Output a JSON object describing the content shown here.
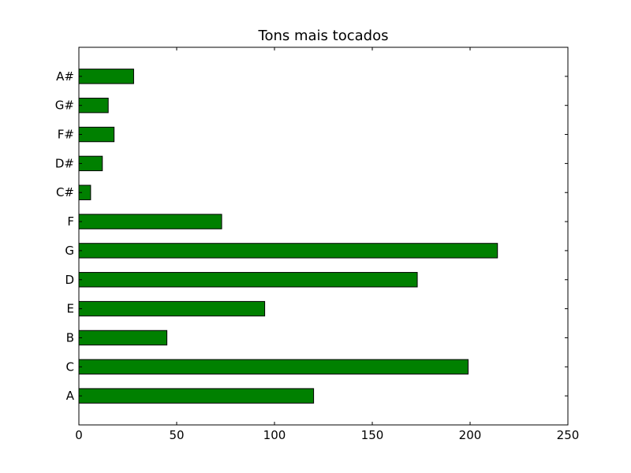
{
  "chart_data": {
    "type": "bar",
    "orientation": "horizontal",
    "title": "Tons mais tocados",
    "xlabel": "",
    "ylabel": "",
    "categories": [
      "A",
      "C",
      "B",
      "E",
      "D",
      "G",
      "F",
      "C#",
      "D#",
      "F#",
      "G#",
      "A#"
    ],
    "values": [
      120,
      199,
      45,
      95,
      173,
      214,
      73,
      6,
      12,
      18,
      15,
      28
    ],
    "xlim": [
      0,
      250
    ],
    "xticks": [
      0,
      50,
      100,
      150,
      200,
      250
    ],
    "grid": false,
    "legend": "none",
    "bar_color": "#008000",
    "edge_color": "#000000"
  }
}
